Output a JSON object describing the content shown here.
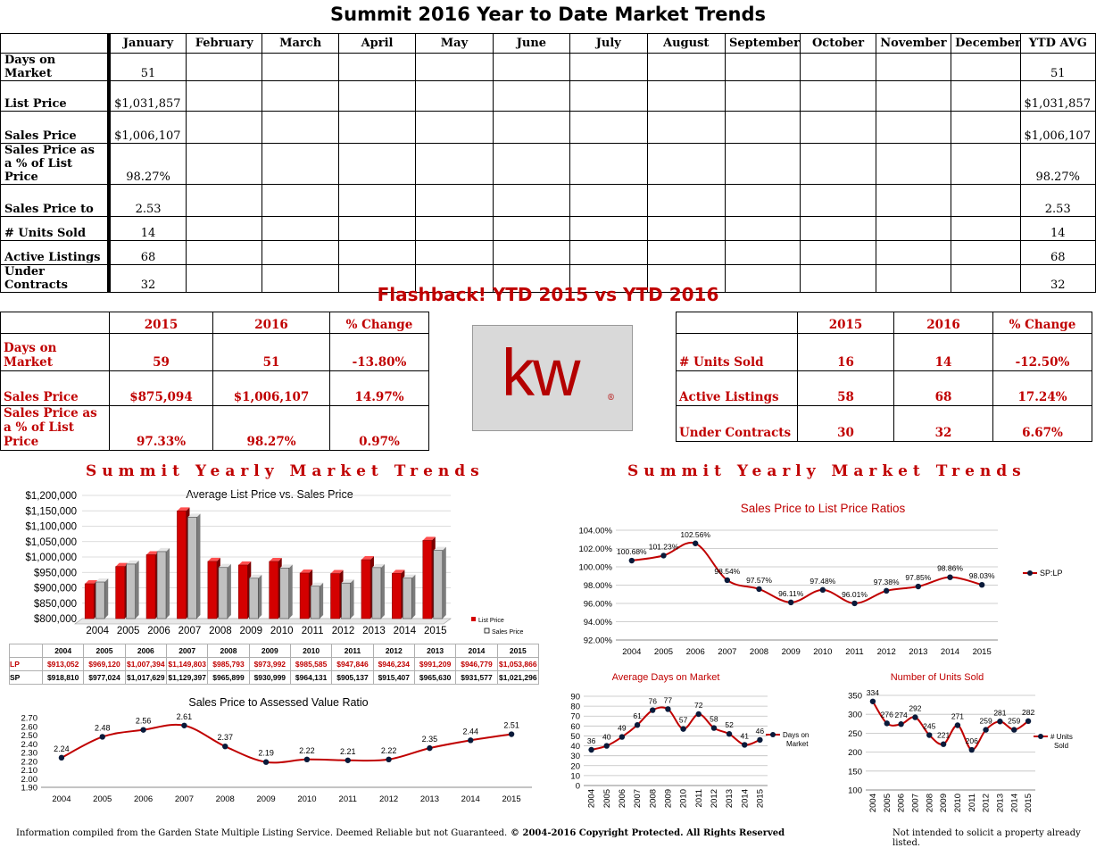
{
  "title": "Summit 2016 Year to Date Market Trends",
  "ytd_table": {
    "months": [
      "January",
      "February",
      "March",
      "April",
      "May",
      "June",
      "July",
      "August",
      "September",
      "October",
      "November",
      "December",
      "YTD AVG"
    ],
    "rows": [
      {
        "label": "Days on Market",
        "values": [
          "51",
          "",
          "",
          "",
          "",
          "",
          "",
          "",
          "",
          "",
          "",
          "",
          "51"
        ]
      },
      {
        "label": "List Price",
        "values": [
          "$1,031,857",
          "",
          "",
          "",
          "",
          "",
          "",
          "",
          "",
          "",
          "",
          "",
          "$1,031,857"
        ]
      },
      {
        "label": "Sales Price",
        "values": [
          "$1,006,107",
          "",
          "",
          "",
          "",
          "",
          "",
          "",
          "",
          "",
          "",
          "",
          "$1,006,107"
        ]
      },
      {
        "label": "Sales Price as a % of List Price",
        "values": [
          "98.27%",
          "",
          "",
          "",
          "",
          "",
          "",
          "",
          "",
          "",
          "",
          "",
          "98.27%"
        ]
      },
      {
        "label": "Sales Price to",
        "values": [
          "2.53",
          "",
          "",
          "",
          "",
          "",
          "",
          "",
          "",
          "",
          "",
          "",
          "2.53"
        ]
      },
      {
        "label": "# Units Sold",
        "values": [
          "14",
          "",
          "",
          "",
          "",
          "",
          "",
          "",
          "",
          "",
          "",
          "",
          "14"
        ]
      },
      {
        "label": "Active Listings",
        "values": [
          "68",
          "",
          "",
          "",
          "",
          "",
          "",
          "",
          "",
          "",
          "",
          "",
          "68"
        ]
      },
      {
        "label": "Under Contracts",
        "values": [
          "32",
          "",
          "",
          "",
          "",
          "",
          "",
          "",
          "",
          "",
          "",
          "",
          "32"
        ]
      }
    ]
  },
  "flashback": {
    "title": "Flashback!  YTD 2015 vs YTD 2016",
    "headers": [
      "2015",
      "2016",
      "% Change"
    ],
    "left": [
      {
        "label": "Days on Market",
        "v2015": "59",
        "v2016": "51",
        "change": "-13.80%"
      },
      {
        "label": "Sales Price",
        "v2015": "$875,094",
        "v2016": "$1,006,107",
        "change": "14.97%"
      },
      {
        "label": "Sales Price as a % of List Price",
        "v2015": "97.33%",
        "v2016": "98.27%",
        "change": "0.97%"
      }
    ],
    "right": [
      {
        "label": "# Units Sold",
        "v2015": "16",
        "v2016": "14",
        "change": "-12.50%"
      },
      {
        "label": "Active Listings",
        "v2015": "58",
        "v2016": "68",
        "change": "17.24%"
      },
      {
        "label": "Under Contracts",
        "v2015": "30",
        "v2016": "32",
        "change": "6.67%"
      }
    ]
  },
  "logo_text": "kw",
  "section_title": "Summit Yearly Market Trends",
  "colors": {
    "red": "#c00000",
    "bar_red": "#d40000",
    "bar_gray": "#c0c0c0",
    "line_red": "#c00000",
    "marker": "#0a1a3a"
  },
  "chart_data": [
    {
      "type": "bar",
      "title": "Average List Price vs. Sales Price",
      "categories": [
        "2004",
        "2005",
        "2006",
        "2007",
        "2008",
        "2009",
        "2010",
        "2011",
        "2012",
        "2013",
        "2014",
        "2015"
      ],
      "series": [
        {
          "name": "List Price",
          "values": [
            913052,
            969120,
            1007394,
            1149803,
            985793,
            973992,
            985585,
            947846,
            946234,
            991209,
            946779,
            1053866
          ]
        },
        {
          "name": "Sales Price",
          "values": [
            918810,
            977024,
            1017629,
            1129397,
            965899,
            930999,
            964131,
            905137,
            915407,
            965630,
            931577,
            1021296
          ]
        }
      ],
      "ylim": [
        800000,
        1200000
      ],
      "yticks": [
        "$800,000",
        "$850,000",
        "$900,000",
        "$950,000",
        "$1,000,000",
        "$1,050,000",
        "$1,100,000",
        "$1,150,000",
        "$1,200,000"
      ],
      "table_rows": [
        {
          "label": "LP",
          "values": [
            "$913,052",
            "$969,120",
            "$1,007,394",
            "$1,149,803",
            "$985,793",
            "$973,992",
            "$985,585",
            "$947,846",
            "$946,234",
            "$991,209",
            "$946,779",
            "$1,053,866"
          ]
        },
        {
          "label": "SP",
          "values": [
            "$918,810",
            "$977,024",
            "$1,017,629",
            "$1,129,397",
            "$965,899",
            "$930,999",
            "$964,131",
            "$905,137",
            "$915,407",
            "$965,630",
            "$931,577",
            "$1,021,296"
          ]
        }
      ]
    },
    {
      "type": "line",
      "title": "Sales Price to Assessed Value Ratio",
      "x": [
        "2004",
        "2005",
        "2006",
        "2007",
        "2008",
        "2009",
        "2010",
        "2011",
        "2012",
        "2013",
        "2014",
        "2015"
      ],
      "values": [
        2.24,
        2.48,
        2.56,
        2.61,
        2.37,
        2.19,
        2.22,
        2.21,
        2.22,
        2.35,
        2.44,
        2.51
      ],
      "labels": [
        "2.24",
        "2.48",
        "2.56",
        "2.61",
        "2.37",
        "2.19",
        "2.22",
        "2.21",
        "2.22",
        "2.35",
        "2.44",
        "2.51"
      ],
      "ylim": [
        1.9,
        2.7
      ],
      "yticks": [
        "1.90",
        "2.00",
        "2.10",
        "2.20",
        "2.30",
        "2.40",
        "2.50",
        "2.60",
        "2.70"
      ]
    },
    {
      "type": "line",
      "title": "Sales Price to List Price Ratios",
      "legend": "SP:LP",
      "x": [
        "2004",
        "2005",
        "2006",
        "2007",
        "2008",
        "2009",
        "2010",
        "2011",
        "2012",
        "2013",
        "2014",
        "2015"
      ],
      "values": [
        100.68,
        101.23,
        102.56,
        98.54,
        97.57,
        96.11,
        97.48,
        96.01,
        97.38,
        97.85,
        98.86,
        98.03
      ],
      "labels": [
        "100.68%",
        "101.23%",
        "102.56%",
        "98.54%",
        "97.57%",
        "96.11%",
        "97.48%",
        "96.01%",
        "97.38%",
        "97.85%",
        "98.86%",
        "98.03%"
      ],
      "ylim": [
        92,
        104
      ],
      "yticks": [
        "92.00%",
        "94.00%",
        "96.00%",
        "98.00%",
        "100.00%",
        "102.00%",
        "104.00%"
      ]
    },
    {
      "type": "line",
      "title": "Average Days on Market",
      "legend": "Days on Market",
      "x": [
        "2004",
        "2005",
        "2006",
        "2007",
        "2008",
        "2009",
        "2010",
        "2011",
        "2012",
        "2013",
        "2014",
        "2015"
      ],
      "values": [
        36,
        40,
        49,
        61,
        76,
        77,
        57,
        72,
        58,
        52,
        41,
        46
      ],
      "labels": [
        "36",
        "40",
        "49",
        "61",
        "76",
        "77",
        "57",
        "72",
        "58",
        "52",
        "41",
        "46"
      ],
      "ylim": [
        0,
        90
      ],
      "yticks": [
        "0",
        "10",
        "20",
        "30",
        "40",
        "50",
        "60",
        "70",
        "80",
        "90"
      ]
    },
    {
      "type": "line",
      "title": "Number of Units Sold",
      "legend": "# Units Sold",
      "x": [
        "2004",
        "2005",
        "2006",
        "2007",
        "2008",
        "2009",
        "2010",
        "2011",
        "2012",
        "2013",
        "2014",
        "2015"
      ],
      "values": [
        334,
        276,
        274,
        292,
        245,
        221,
        271,
        206,
        259,
        281,
        259,
        282
      ],
      "labels": [
        "334",
        "276",
        "274",
        "292",
        "245",
        "221",
        "271",
        "206",
        "259",
        "281",
        "259",
        "282"
      ],
      "ylim": [
        100,
        350
      ],
      "yticks": [
        "100",
        "150",
        "200",
        "250",
        "300",
        "350"
      ]
    }
  ],
  "footer": {
    "left": "Information compiled from the Garden State Multiple Listing Service.  Deemed Reliable but not Guaranteed.",
    "center": "© 2004-2016 Copyright Protected.  All Rights Reserved",
    "right": "Not intended to solicit a property already listed."
  }
}
